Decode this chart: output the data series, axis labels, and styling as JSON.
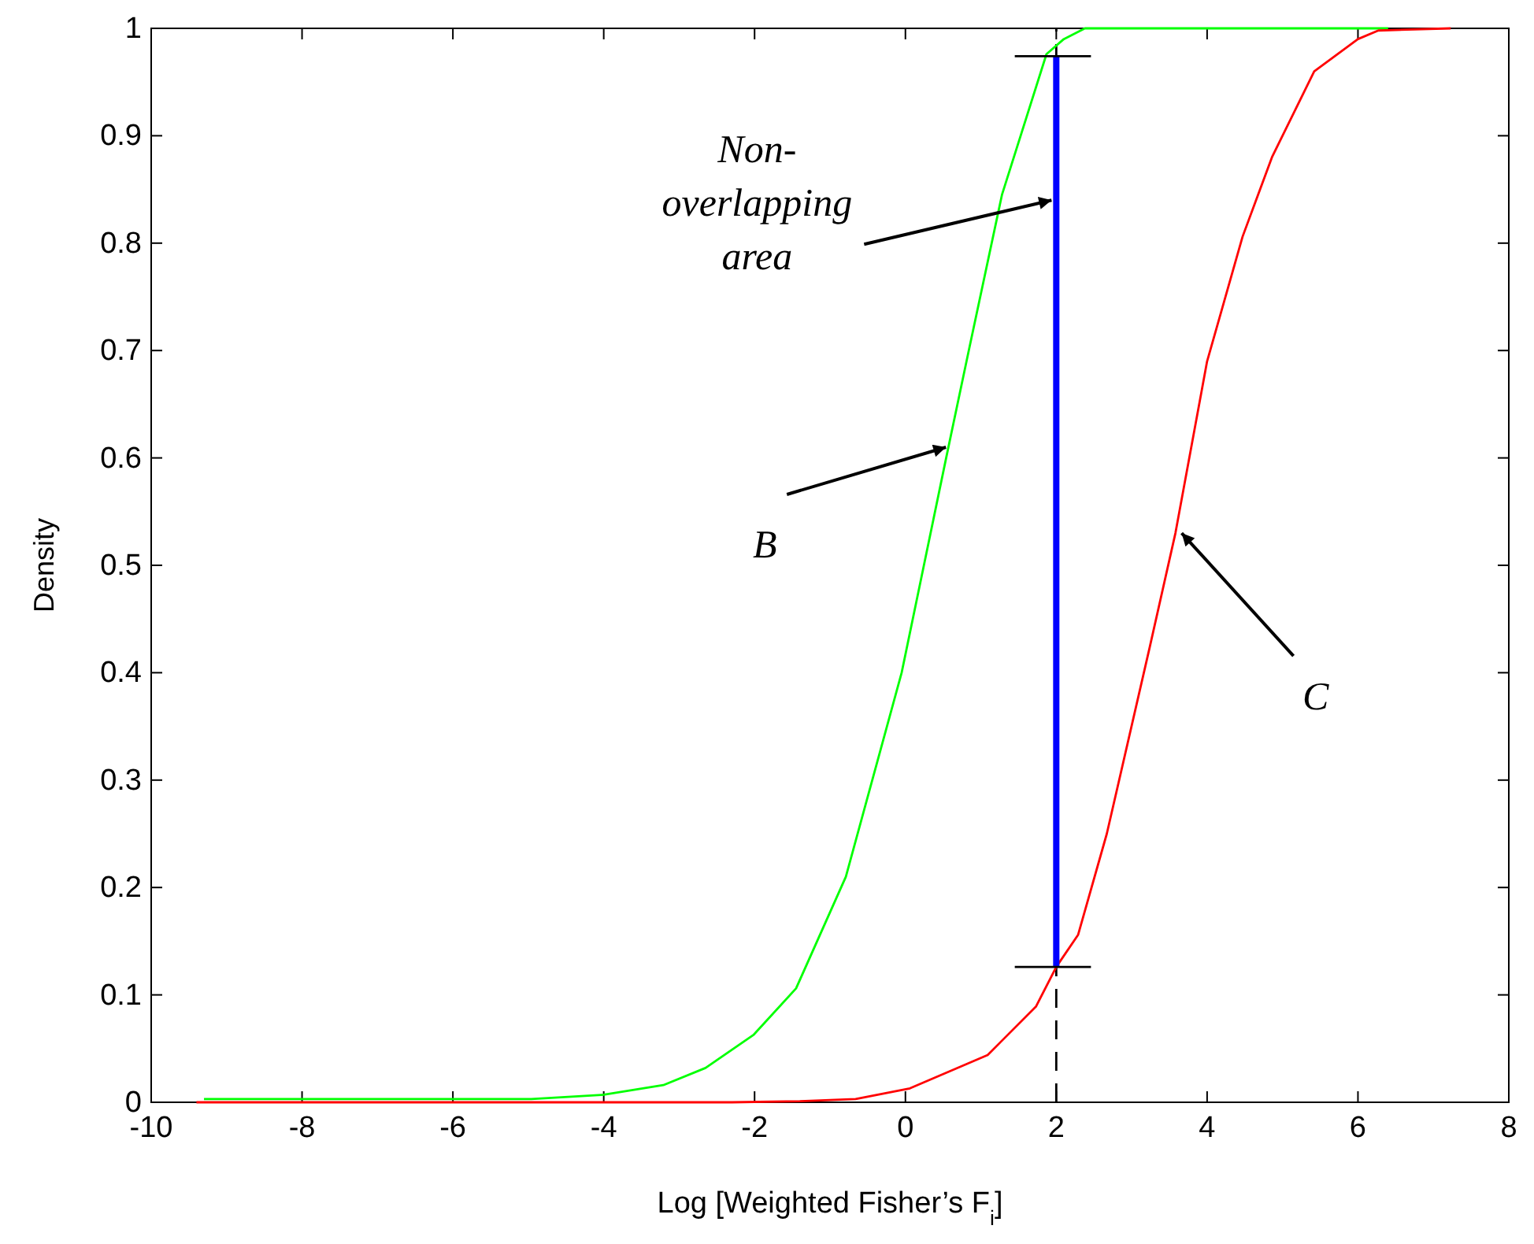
{
  "chart_data": {
    "type": "line",
    "xlabel": "Log [Weighted Fisher’s F$_{i}$]",
    "ylabel": "Density",
    "xlim": [
      -10,
      8
    ],
    "xticks": [
      -10,
      -8,
      -6,
      -4,
      -2,
      0,
      2,
      4,
      6,
      8
    ],
    "ylim": [
      0,
      1
    ],
    "yticks": [
      0,
      0.1,
      0.2,
      0.3,
      0.4,
      0.5,
      0.6,
      0.7,
      0.8,
      0.9,
      1
    ],
    "grid": false,
    "marker": "none",
    "series": [
      {
        "color": "#00ff00",
        "x": [
          -9.3,
          -4.96,
          -4.0,
          -3.21,
          -2.65,
          -2.01,
          -1.45,
          -0.79,
          -0.05,
          0.54,
          0.84,
          1.28,
          1.87,
          2.1,
          2.38,
          6.4
        ],
        "values": [
          0.003,
          0.003,
          0.007,
          0.016,
          0.032,
          0.063,
          0.106,
          0.21,
          0.4,
          0.6,
          0.7,
          0.845,
          0.976,
          0.99,
          1,
          1
        ]
      },
      {
        "color": "#ff0000",
        "x": [
          -9.4,
          -2.3,
          -1.4,
          -0.66,
          0.06,
          1.09,
          1.73,
          2.0,
          2.29,
          2.67,
          3.24,
          3.58,
          4.0,
          4.47,
          4.86,
          5.42,
          6.0,
          6.27,
          7.23
        ],
        "values": [
          0,
          0,
          0.001,
          0.003,
          0.013,
          0.044,
          0.089,
          0.126,
          0.156,
          0.25,
          0.424,
          0.53,
          0.69,
          0.806,
          0.88,
          0.96,
          0.99,
          0.998,
          1
        ]
      },
      {
        "color": "#0000ff",
        "x": [
          2,
          2
        ],
        "values": [
          0.126,
          0.974
        ]
      },
      {
        "color": "#000000",
        "x": [
          1.45,
          2.46
        ],
        "values": [
          0.974,
          0.974
        ]
      },
      {
        "color": "#000000",
        "x": [
          1.45,
          2.46
        ],
        "values": [
          0.126,
          0.126
        ]
      }
    ],
    "ref_lines": [
      {
        "axis": "x",
        "value": 2,
        "color": "#000000",
        "line_style": "dashed"
      }
    ],
    "annotations": [
      {
        "text": "Non-overlapping area",
        "x": 2,
        "y": 0.84
      },
      {
        "text": "B",
        "x": 0.6,
        "y": 0.61
      },
      {
        "text": "C",
        "x": 3.6,
        "y": 0.53
      }
    ]
  }
}
